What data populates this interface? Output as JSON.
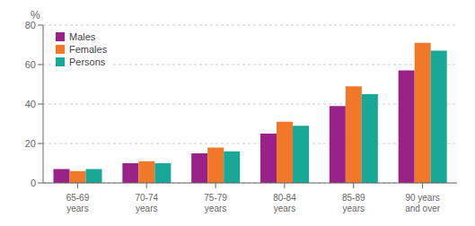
{
  "chart_data": {
    "type": "bar",
    "ylabel": "%",
    "categories": [
      "65-69 years",
      "70-74 years",
      "75-79 years",
      "80-84 years",
      "85-89 years",
      "90 years and over"
    ],
    "series": [
      {
        "name": "Males",
        "color": "#992288",
        "values": [
          7,
          10,
          15,
          25,
          39,
          57
        ]
      },
      {
        "name": "Females",
        "color": "#f07828",
        "values": [
          6,
          11,
          18,
          31,
          49,
          71
        ]
      },
      {
        "name": "Persons",
        "color": "#18a898",
        "values": [
          7,
          10,
          16,
          29,
          45,
          67
        ]
      }
    ],
    "ylim": [
      0,
      80
    ],
    "yticks": [
      0,
      20,
      40,
      60,
      80
    ],
    "grid": true,
    "legend": "upper left"
  }
}
